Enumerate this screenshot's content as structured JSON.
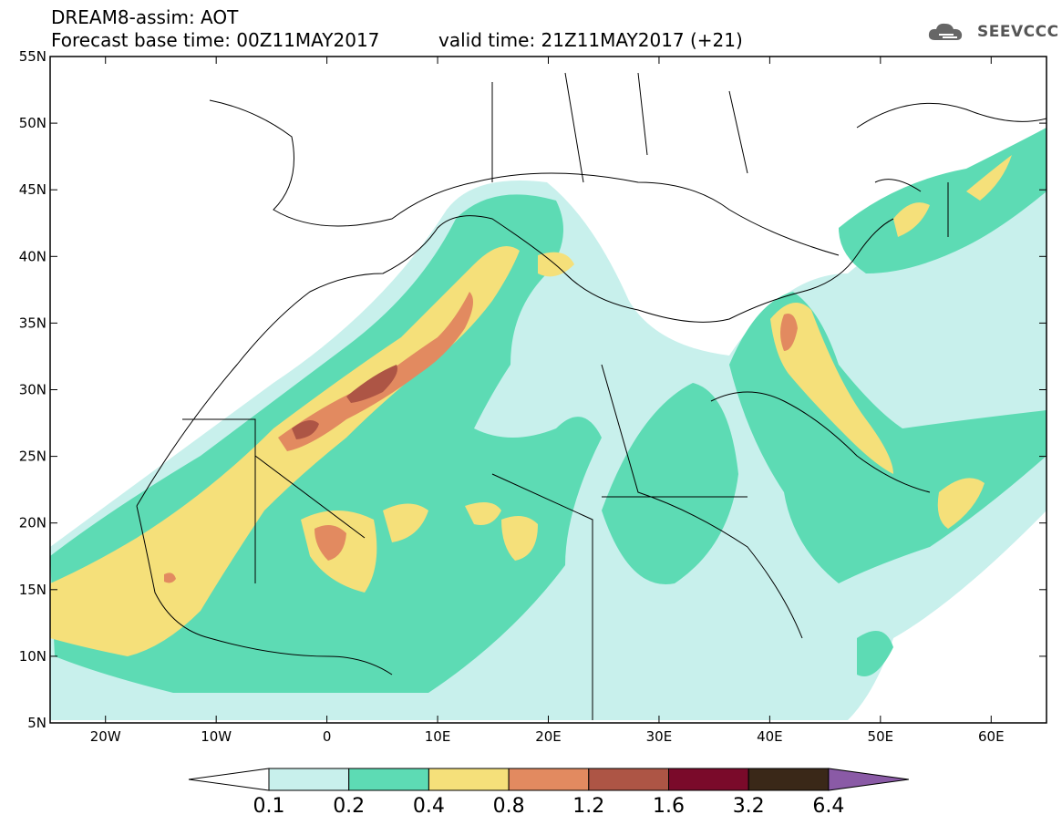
{
  "header": {
    "line1": "DREAM8-assim: AOT",
    "line2": "Forecast base time: 00Z11MAY2017",
    "valid": "valid time: 21Z11MAY2017 (+21)",
    "logo_text": "SEEVCCC"
  },
  "map": {
    "lon_range": [
      -25,
      65
    ],
    "lat_range": [
      5,
      55
    ],
    "lat_ticks": [
      "5N",
      "10N",
      "15N",
      "20N",
      "25N",
      "30N",
      "35N",
      "40N",
      "45N",
      "50N",
      "55N"
    ],
    "lon_ticks": [
      "20W",
      "10W",
      "0",
      "10E",
      "20E",
      "30E",
      "40E",
      "50E",
      "60E"
    ]
  },
  "colorbar": {
    "levels": [
      "0.1",
      "0.2",
      "0.4",
      "0.8",
      "1.2",
      "1.6",
      "3.2",
      "6.4"
    ],
    "colors": {
      "c1": "#c8f0ec",
      "c2": "#5ddbb4",
      "c3": "#f5e07a",
      "c4": "#e28a60",
      "c5": "#ad5545",
      "c6": "#7a0a2a",
      "c7": "#3a2818",
      "c8": "#8a5aa6"
    }
  }
}
